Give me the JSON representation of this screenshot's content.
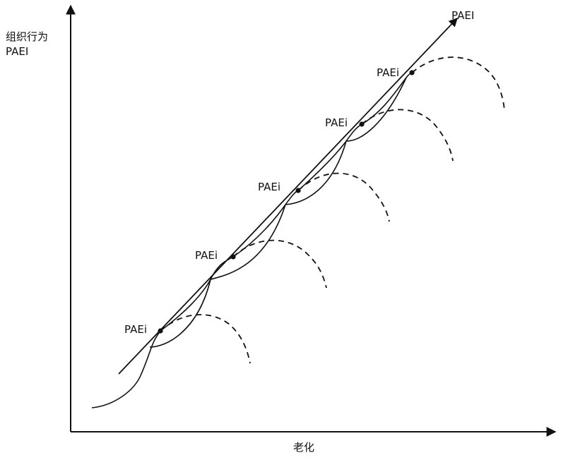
{
  "labels": {
    "y_axis_line1": "组织行为",
    "y_axis_line2": "PAEI",
    "x_axis": "老化",
    "trend_arrow": "PAEI",
    "node": "PAEi"
  },
  "colors": {
    "ink": "#111111",
    "background": "#ffffff"
  }
}
